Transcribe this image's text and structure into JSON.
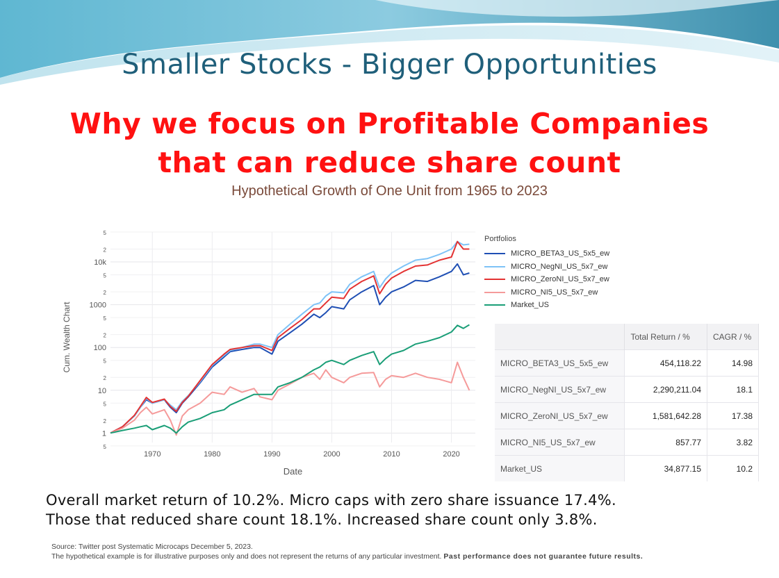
{
  "slide": {
    "title": "Smaller Stocks - Bigger Opportunities",
    "headline_line1": "Why we focus on Profitable Companies",
    "headline_line2": "that can reduce share count",
    "subtitle": "Hypothetical Growth of One Unit from 1965 to 2023",
    "summary_line1": "Overall market return of 10.2%.  Micro caps with zero share issuance 17.4%.",
    "summary_line2": "Those that reduced share count 18.1%.  Increased share count only 3.8%.",
    "source_line": "Source: Twitter post Systematic Microcaps December 5, 2023.",
    "disclaimer": "The hypothetical example is for illustrative purposes only and does not represent the returns of any particular investment.",
    "disclaimer_bold": "Past performance does not guarantee future results."
  },
  "colors": {
    "title": "#1f5f7a",
    "headline": "#ff1111",
    "subtitle": "#7a4a3a"
  },
  "chart_data": {
    "type": "line",
    "xlabel": "Date",
    "ylabel": "Cum. Wealth Chart",
    "log_y": true,
    "ylim": [
      0.6,
      50000
    ],
    "xlim": [
      1963,
      2024
    ],
    "x_ticks": [
      "1970",
      "1980",
      "1990",
      "2000",
      "2010",
      "2020"
    ],
    "y_ticks": [
      {
        "v": 0.5,
        "t": "5",
        "minor": true
      },
      {
        "v": 1,
        "t": "1"
      },
      {
        "v": 2,
        "t": "2",
        "minor": true
      },
      {
        "v": 5,
        "t": "5",
        "minor": true
      },
      {
        "v": 10,
        "t": "10"
      },
      {
        "v": 20,
        "t": "2",
        "minor": true
      },
      {
        "v": 50,
        "t": "5",
        "minor": true
      },
      {
        "v": 100,
        "t": "100"
      },
      {
        "v": 200,
        "t": "2",
        "minor": true
      },
      {
        "v": 500,
        "t": "5",
        "minor": true
      },
      {
        "v": 1000,
        "t": "1000"
      },
      {
        "v": 2000,
        "t": "2",
        "minor": true
      },
      {
        "v": 5000,
        "t": "5",
        "minor": true
      },
      {
        "v": 10000,
        "t": "10k"
      },
      {
        "v": 20000,
        "t": "2",
        "minor": true
      },
      {
        "v": 50000,
        "t": "5",
        "minor": true
      }
    ],
    "legend_title": "Portfolios",
    "grid": true,
    "legend_position": "top-right",
    "series": [
      {
        "name": "MICRO_BETA3_US_5x5_ew",
        "color": "#1f4fb4",
        "x": [
          1963,
          1965,
          1967,
          1968,
          1969,
          1970,
          1972,
          1973,
          1974,
          1975,
          1976,
          1978,
          1980,
          1982,
          1983,
          1985,
          1987,
          1988,
          1990,
          1991,
          1993,
          1995,
          1997,
          1998,
          1999,
          2000,
          2002,
          2003,
          2005,
          2007,
          2008,
          2009,
          2010,
          2012,
          2014,
          2016,
          2018,
          2020,
          2021,
          2022,
          2023
        ],
        "y": [
          1,
          1.4,
          2.5,
          4,
          6,
          5,
          6,
          4,
          3,
          5,
          7,
          15,
          35,
          60,
          80,
          90,
          100,
          100,
          70,
          140,
          220,
          350,
          600,
          500,
          650,
          900,
          800,
          1300,
          2000,
          2800,
          1000,
          1500,
          2000,
          2600,
          3700,
          3500,
          4500,
          6000,
          9000,
          5000,
          5500
        ]
      },
      {
        "name": "MICRO_NegNI_US_5x7_ew",
        "color": "#7ec3f7",
        "x": [
          1963,
          1965,
          1967,
          1968,
          1969,
          1970,
          1972,
          1973,
          1974,
          1975,
          1976,
          1978,
          1980,
          1982,
          1983,
          1985,
          1987,
          1988,
          1990,
          1991,
          1993,
          1995,
          1997,
          1998,
          1999,
          2000,
          2002,
          2003,
          2005,
          2007,
          2008,
          2009,
          2010,
          2012,
          2014,
          2016,
          2018,
          2020,
          2021,
          2022,
          2023
        ],
        "y": [
          1,
          1.4,
          2.5,
          4,
          6.5,
          5,
          6,
          4.5,
          3.5,
          5.5,
          7.5,
          16,
          38,
          65,
          85,
          100,
          120,
          120,
          100,
          200,
          350,
          600,
          1000,
          1100,
          1600,
          2000,
          1900,
          3000,
          4500,
          6000,
          2500,
          4000,
          5500,
          8000,
          11000,
          12000,
          15000,
          20000,
          30000,
          25000,
          26000
        ]
      },
      {
        "name": "MICRO_ZeroNI_US_5x7_ew",
        "color": "#e33232",
        "x": [
          1963,
          1965,
          1967,
          1968,
          1969,
          1970,
          1972,
          1973,
          1974,
          1975,
          1976,
          1978,
          1980,
          1982,
          1983,
          1985,
          1987,
          1988,
          1990,
          1991,
          1993,
          1995,
          1997,
          1998,
          1999,
          2000,
          2002,
          2003,
          2005,
          2007,
          2008,
          2009,
          2010,
          2012,
          2014,
          2016,
          2018,
          2020,
          2021,
          2022,
          2023
        ],
        "y": [
          1,
          1.4,
          2.6,
          4.2,
          6.8,
          5.2,
          6.2,
          4.2,
          3.2,
          5.2,
          7.2,
          17,
          40,
          70,
          90,
          100,
          110,
          110,
          85,
          170,
          280,
          450,
          800,
          800,
          1100,
          1500,
          1400,
          2300,
          3500,
          4700,
          1800,
          3000,
          4200,
          6000,
          8000,
          8500,
          11000,
          13000,
          30000,
          20000,
          20000
        ]
      },
      {
        "name": "MICRO_NI5_US_5x7_ew",
        "color": "#f59a9a",
        "x": [
          1963,
          1965,
          1967,
          1968,
          1969,
          1970,
          1972,
          1973,
          1974,
          1975,
          1976,
          1978,
          1980,
          1982,
          1983,
          1985,
          1987,
          1988,
          1990,
          1991,
          1993,
          1995,
          1997,
          1998,
          1999,
          2000,
          2002,
          2003,
          2005,
          2007,
          2008,
          2009,
          2010,
          2012,
          2014,
          2016,
          2018,
          2020,
          2021,
          2022,
          2023
        ],
        "y": [
          1,
          1.3,
          2,
          3,
          4,
          2.8,
          3.5,
          2,
          0.9,
          2.5,
          3.5,
          5,
          9,
          8,
          12,
          9,
          11,
          7,
          6,
          10,
          14,
          20,
          25,
          18,
          30,
          20,
          15,
          20,
          25,
          26,
          12,
          18,
          22,
          20,
          25,
          20,
          18,
          15,
          45,
          20,
          10
        ]
      },
      {
        "name": "Market_US",
        "color": "#1a9e77",
        "x": [
          1963,
          1965,
          1967,
          1968,
          1969,
          1970,
          1972,
          1973,
          1974,
          1975,
          1976,
          1978,
          1980,
          1982,
          1983,
          1985,
          1987,
          1988,
          1990,
          1991,
          1993,
          1995,
          1997,
          1998,
          1999,
          2000,
          2002,
          2003,
          2005,
          2007,
          2008,
          2009,
          2010,
          2012,
          2014,
          2016,
          2018,
          2020,
          2021,
          2022,
          2023
        ],
        "y": [
          1,
          1.15,
          1.3,
          1.4,
          1.5,
          1.2,
          1.5,
          1.3,
          1.0,
          1.4,
          1.8,
          2.2,
          3,
          3.5,
          4.5,
          6,
          8,
          8,
          8,
          12,
          15,
          20,
          30,
          35,
          45,
          50,
          40,
          50,
          65,
          80,
          40,
          55,
          70,
          85,
          120,
          140,
          170,
          230,
          330,
          280,
          340
        ]
      }
    ]
  },
  "table": {
    "headers": [
      "",
      "Total Return / %",
      "CAGR / %"
    ],
    "rows": [
      [
        "MICRO_BETA3_US_5x5_ew",
        "454,118.22",
        "14.98"
      ],
      [
        "MICRO_NegNI_US_5x7_ew",
        "2,290,211.04",
        "18.1"
      ],
      [
        "MICRO_ZeroNI_US_5x7_ew",
        "1,581,642.28",
        "17.38"
      ],
      [
        "MICRO_NI5_US_5x7_ew",
        "857.77",
        "3.82"
      ],
      [
        "Market_US",
        "34,877.15",
        "10.2"
      ]
    ]
  }
}
